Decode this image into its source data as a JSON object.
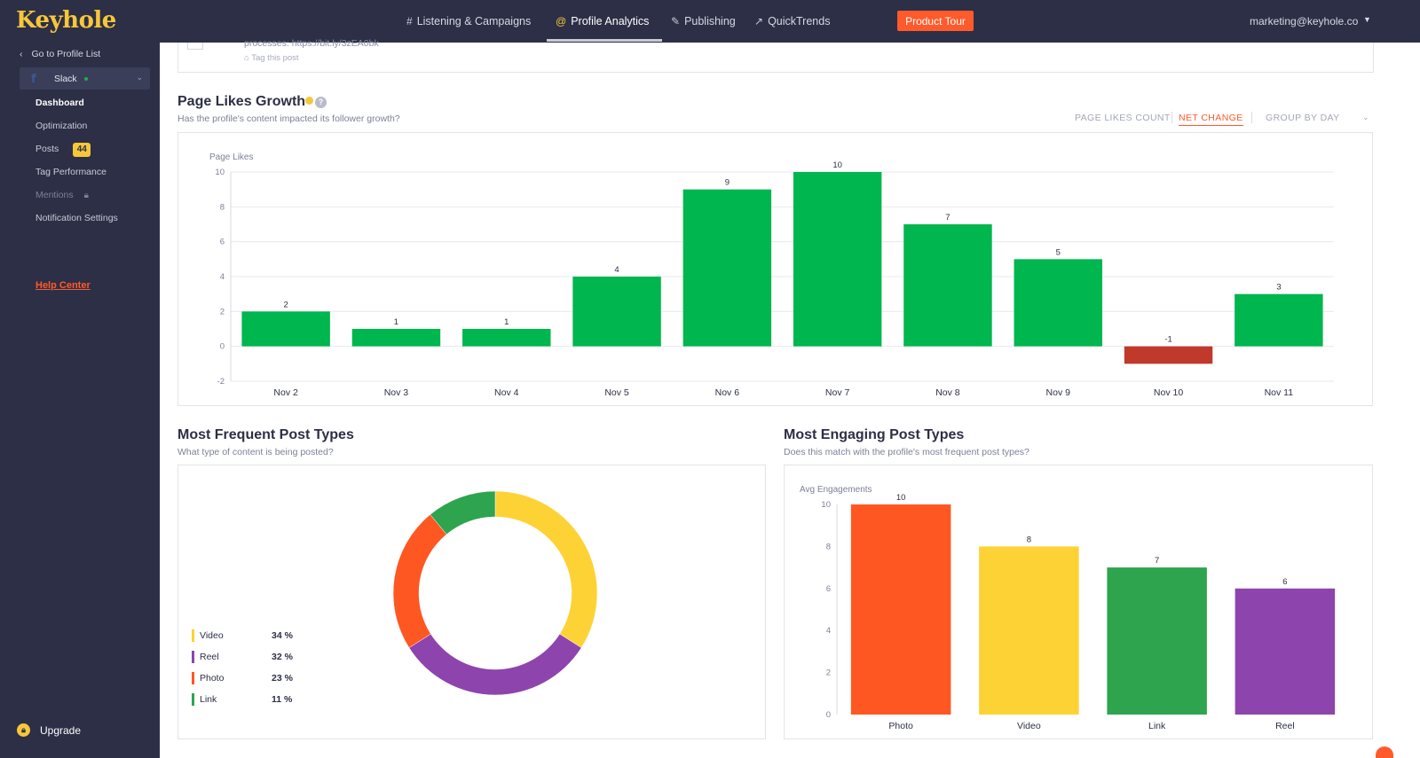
{
  "app": {
    "logo": "Keyhole"
  },
  "topnav": {
    "items": [
      {
        "icon": "#",
        "label": "Listening & Campaigns"
      },
      {
        "icon": "@",
        "label": "Profile Analytics"
      },
      {
        "icon": "✎",
        "label": "Publishing"
      },
      {
        "icon": "↗",
        "label": "QuickTrends"
      }
    ],
    "tour_button": "Product Tour",
    "account_email": "marketing@keyhole.co"
  },
  "sidebar": {
    "back_label": "Go to Profile List",
    "profile": {
      "name": "Slack",
      "network": "f"
    },
    "items": [
      {
        "label": "Dashboard"
      },
      {
        "label": "Optimization"
      },
      {
        "label": "Posts",
        "badge": "44"
      },
      {
        "label": "Tag Performance"
      },
      {
        "label": "Mentions"
      },
      {
        "label": "Notification Settings"
      }
    ],
    "help_label": "Help Center",
    "upgrade_label": "Upgrade"
  },
  "previous_post": {
    "text": "processes: https://bit.ly/3zEA0bk",
    "tag_label": "Tag this post"
  },
  "page_likes": {
    "title": "Page Likes Growth",
    "subtitle": "Has the profile's content impacted its follower growth?",
    "toggles": [
      "PAGE LIKES COUNT",
      "NET CHANGE",
      "GROUP BY DAY"
    ],
    "active_toggle": "NET CHANGE"
  },
  "frequent_types": {
    "title": "Most Frequent Post Types",
    "subtitle": "What type of content is being posted?"
  },
  "engaging_types": {
    "title": "Most Engaging Post Types",
    "subtitle": "Does this match with the profile's most frequent post types?"
  },
  "colors": {
    "positive": "#00b64e",
    "negative": "#c0392b",
    "accent": "#ff5a2c",
    "brand": "#f7c63b",
    "sidebar": "#2c2f45"
  },
  "chart_data": [
    {
      "type": "bar",
      "ylabel": "Page Likes",
      "categories": [
        "Nov 2",
        "Nov 3",
        "Nov 4",
        "Nov 5",
        "Nov 6",
        "Nov 7",
        "Nov 8",
        "Nov 9",
        "Nov 10",
        "Nov 11"
      ],
      "values": [
        2,
        1,
        1,
        4,
        9,
        10,
        7,
        5,
        -1,
        3
      ],
      "ylim": [
        -2,
        10
      ],
      "yticks": [
        -2,
        0,
        2,
        4,
        6,
        8,
        10
      ],
      "grid": true
    },
    {
      "type": "pie",
      "categories": [
        "Video",
        "Reel",
        "Photo",
        "Link"
      ],
      "values": [
        34,
        32,
        23,
        11
      ],
      "value_labels": [
        "34 %",
        "32 %",
        "23 %",
        "11 %"
      ],
      "colors": [
        "#fdd235",
        "#8e44ad",
        "#ff5722",
        "#2ea44f"
      ],
      "legend": "bottom-left"
    },
    {
      "type": "bar",
      "ylabel": "Avg Engagements",
      "categories": [
        "Photo",
        "Video",
        "Link",
        "Reel"
      ],
      "values": [
        10,
        8,
        7,
        6
      ],
      "value_labels": [
        "10",
        "8",
        "7",
        "6"
      ],
      "ylim": [
        0,
        10
      ],
      "yticks": [
        0,
        2,
        4,
        6,
        8,
        10
      ],
      "colors": [
        "#ff5722",
        "#fdd235",
        "#2ea44f",
        "#8e44ad"
      ]
    }
  ]
}
